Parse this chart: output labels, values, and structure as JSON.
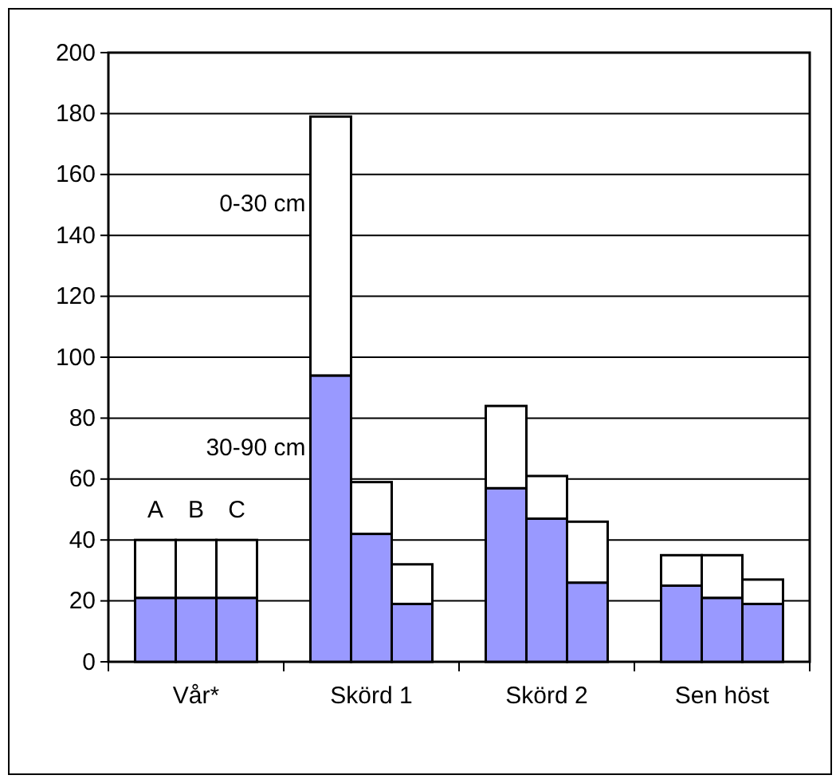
{
  "chart_data": {
    "type": "bar",
    "stacked": true,
    "categories": [
      null,
      "Vår*",
      null,
      null,
      "Skörd 1",
      null,
      null,
      "Skörd 2",
      null,
      null,
      "Sen höst",
      null
    ],
    "series": [
      {
        "name": "30-90 cm",
        "color": "#9999ff",
        "values": [
          21,
          21,
          21,
          94,
          42,
          19,
          57,
          47,
          26,
          25,
          21,
          19
        ]
      },
      {
        "name": "0-30 cm",
        "color": "#ffffff",
        "values": [
          19,
          19,
          19,
          85,
          17,
          13,
          27,
          14,
          20,
          10,
          14,
          8
        ]
      }
    ],
    "ylim": [
      0,
      200
    ],
    "yticks": [
      0,
      20,
      40,
      60,
      80,
      100,
      120,
      140,
      160,
      180,
      200
    ],
    "grid": "y",
    "annotations": [
      "A",
      "B",
      "C"
    ]
  }
}
